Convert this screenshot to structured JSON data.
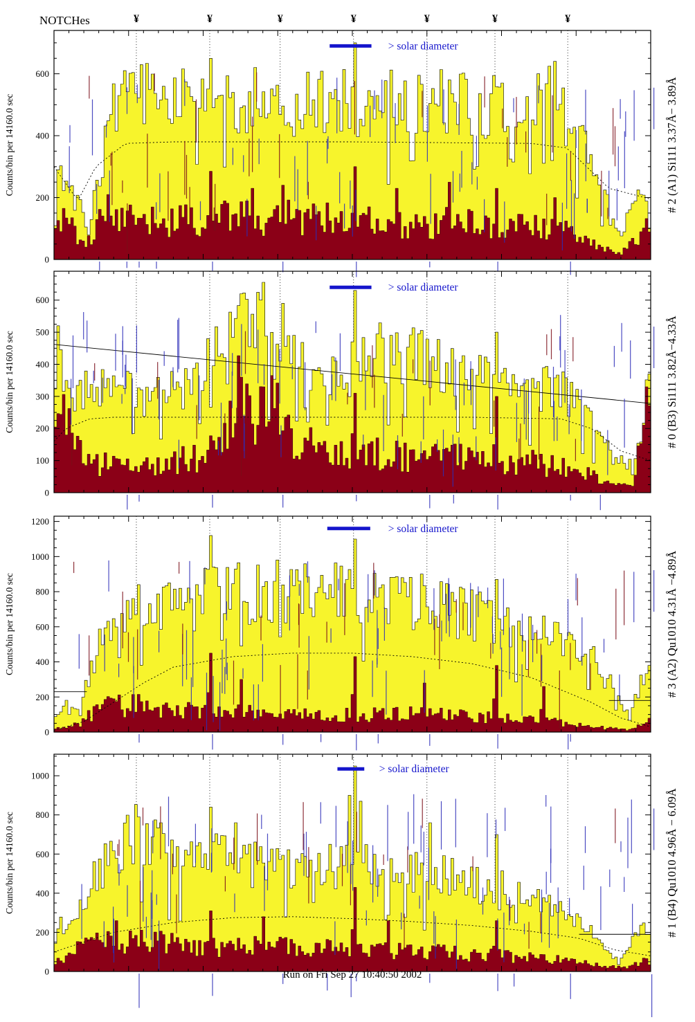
{
  "header": {
    "title": "NOTCHes",
    "notch_symbol": "¥"
  },
  "footer": {
    "text": "Run on Fri Sep 27 10:40:50 2002"
  },
  "annotations": {
    "solar_diameter_label": "> solar diameter"
  },
  "colors": {
    "yellow": "#f7f42c",
    "red": "#8b0017",
    "blue": "#1515cc",
    "annotation_blue": "#2d2db8",
    "annotation_red": "#7a0d18",
    "frame": "#000000",
    "notch_line": "#222222"
  },
  "notch_fractions": [
    0.138,
    0.261,
    0.379,
    0.502,
    0.625,
    0.739,
    0.861
  ],
  "chart_data": [
    {
      "type": "bar",
      "name": "# 2 (A1) Si111  3.37Å− 3.89Å",
      "ylabel": "Counts/bin per  14160.0 sec",
      "ylim": [
        0,
        740
      ],
      "yticks": [
        0,
        200,
        400,
        600
      ],
      "seed": 101,
      "series": [
        {
          "name": "accepted-counts-yellow",
          "envelope": {
            "x": [
              0,
              0.008,
              0.02,
              0.035,
              0.05,
              0.065,
              0.08,
              0.1,
              0.13,
              0.2,
              0.3,
              0.4,
              0.5,
              0.6,
              0.7,
              0.78,
              0.84,
              0.87,
              0.9,
              0.925,
              0.95,
              0.97,
              0.985,
              1
            ],
            "y": [
              60,
              300,
              260,
              320,
              120,
              160,
              300,
              480,
              520,
              500,
              510,
              495,
              505,
              495,
              500,
              490,
              520,
              430,
              300,
              230,
              60,
              180,
              185,
              190
            ]
          },
          "spikes": [
            [
              0.118,
              610
            ],
            [
              0.261,
              650
            ],
            [
              0.502,
              700
            ],
            [
              0.66,
              580
            ],
            [
              0.75,
              570
            ],
            [
              0.807,
              600
            ],
            [
              0.835,
              640
            ]
          ]
        },
        {
          "name": "rejected-counts-red",
          "envelope": {
            "x": [
              0,
              0.02,
              0.05,
              0.09,
              0.13,
              0.2,
              0.3,
              0.4,
              0.5,
              0.6,
              0.7,
              0.8,
              0.86,
              0.9,
              0.95,
              1
            ],
            "y": [
              90,
              140,
              50,
              150,
              130,
              120,
              135,
              140,
              120,
              115,
              120,
              110,
              90,
              50,
              15,
              120
            ]
          },
          "spikes": [
            [
              0.09,
              210
            ],
            [
              0.261,
              285
            ],
            [
              0.33,
              230
            ],
            [
              0.38,
              240
            ],
            [
              0.502,
              300
            ],
            [
              0.57,
              230
            ],
            [
              0.66,
              250
            ],
            [
              0.74,
              230
            ],
            [
              0.835,
              200
            ]
          ]
        },
        {
          "name": "smooth-background-dotted",
          "points": {
            "x": [
              0,
              0.04,
              0.07,
              0.12,
              0.2,
              0.5,
              0.8,
              0.86,
              0.93,
              1
            ],
            "y": [
              300,
              190,
              300,
              375,
              380,
              380,
              375,
              360,
              230,
              195
            ]
          }
        }
      ],
      "ref_lines": [],
      "solar_bar": {
        "x0": 0.462,
        "x1": 0.532,
        "y": 690,
        "label_x": 0.56
      }
    },
    {
      "type": "bar",
      "name": "# 0 (B3) Si111  3.82Å−4.33Å",
      "ylabel": "Counts/bin per  14160.0 sec",
      "ylim": [
        0,
        690
      ],
      "yticks": [
        0,
        100,
        200,
        300,
        400,
        500,
        600
      ],
      "seed": 202,
      "series": [
        {
          "name": "accepted-counts-yellow",
          "envelope": {
            "x": [
              0,
              0.006,
              0.02,
              0.04,
              0.07,
              0.1,
              0.15,
              0.2,
              0.24,
              0.27,
              0.29,
              0.31,
              0.33,
              0.35,
              0.37,
              0.4,
              0.43,
              0.47,
              0.5,
              0.54,
              0.58,
              0.62,
              0.66,
              0.7,
              0.75,
              0.8,
              0.85,
              0.88,
              0.91,
              0.94,
              0.97,
              0.99,
              1
            ],
            "y": [
              300,
              520,
              330,
              300,
              320,
              310,
              300,
              310,
              330,
              470,
              420,
              560,
              460,
              540,
              420,
              480,
              380,
              360,
              380,
              430,
              420,
              410,
              390,
              360,
              340,
              330,
              310,
              280,
              200,
              100,
              90,
              250,
              370
            ]
          },
          "spikes": [
            [
              0.005,
              520
            ],
            [
              0.258,
              480
            ],
            [
              0.31,
              620
            ],
            [
              0.345,
              600
            ],
            [
              0.38,
              590
            ],
            [
              0.502,
              630
            ],
            [
              0.74,
              500
            ],
            [
              0.997,
              370
            ]
          ]
        },
        {
          "name": "rejected-counts-red",
          "envelope": {
            "x": [
              0,
              0.01,
              0.03,
              0.06,
              0.1,
              0.15,
              0.2,
              0.25,
              0.28,
              0.31,
              0.34,
              0.37,
              0.4,
              0.45,
              0.5,
              0.55,
              0.6,
              0.65,
              0.7,
              0.75,
              0.8,
              0.85,
              0.9,
              0.94,
              0.97,
              0.99,
              1
            ],
            "y": [
              260,
              320,
              150,
              90,
              85,
              90,
              95,
              110,
              140,
              330,
              260,
              310,
              160,
              130,
              130,
              120,
              115,
              110,
              105,
              100,
              95,
              80,
              60,
              30,
              20,
              320,
              220
            ]
          },
          "spikes": [
            [
              0.31,
              360
            ],
            [
              0.35,
              330
            ],
            [
              0.502,
              310
            ],
            [
              0.74,
              300
            ],
            [
              0.99,
              330
            ]
          ]
        },
        {
          "name": "smooth-background-dotted",
          "points": {
            "x": [
              0,
              0.02,
              0.06,
              0.1,
              0.3,
              0.5,
              0.7,
              0.85,
              0.9,
              0.95,
              1
            ],
            "y": [
              160,
              200,
              230,
              235,
              235,
              235,
              235,
              230,
              200,
              130,
              100
            ]
          }
        }
      ],
      "ref_lines": [
        {
          "x0": 0,
          "y0": 462,
          "x1": 1,
          "y1": 278
        }
      ],
      "solar_bar": {
        "x0": 0.462,
        "x1": 0.532,
        "y": 640,
        "label_x": 0.56
      }
    },
    {
      "type": "bar",
      "name": "# 3 (A2) Qu1010  4.31Å −4.89Å",
      "ylabel": "Counts/bin per  14160.0 sec",
      "ylim": [
        0,
        1230
      ],
      "yticks": [
        0,
        200,
        400,
        600,
        800,
        1000,
        1200
      ],
      "seed": 303,
      "series": [
        {
          "name": "accepted-counts-yellow",
          "envelope": {
            "x": [
              0,
              0.02,
              0.035,
              0.05,
              0.07,
              0.09,
              0.11,
              0.14,
              0.18,
              0.22,
              0.26,
              0.3,
              0.35,
              0.4,
              0.45,
              0.5,
              0.55,
              0.6,
              0.65,
              0.7,
              0.75,
              0.8,
              0.84,
              0.88,
              0.91,
              0.94,
              0.965,
              0.985,
              1
            ],
            "y": [
              60,
              170,
              120,
              200,
              420,
              600,
              650,
              680,
              700,
              720,
              760,
              780,
              790,
              800,
              790,
              780,
              760,
              740,
              700,
              660,
              620,
              560,
              520,
              470,
              380,
              230,
              80,
              300,
              380
            ]
          },
          "spikes": [
            [
              0.19,
              850
            ],
            [
              0.235,
              840
            ],
            [
              0.26,
              1120
            ],
            [
              0.502,
              1100
            ],
            [
              0.58,
              880
            ],
            [
              0.74,
              870
            ]
          ]
        },
        {
          "name": "rejected-counts-red",
          "envelope": {
            "x": [
              0,
              0.04,
              0.07,
              0.1,
              0.14,
              0.2,
              0.3,
              0.4,
              0.5,
              0.6,
              0.7,
              0.8,
              0.87,
              0.92,
              0.96,
              1
            ],
            "y": [
              20,
              40,
              120,
              150,
              150,
              130,
              115,
              100,
              95,
              100,
              90,
              75,
              50,
              25,
              15,
              60
            ]
          },
          "spikes": [
            [
              0.26,
              450
            ],
            [
              0.31,
              300
            ],
            [
              0.502,
              430
            ],
            [
              0.62,
              280
            ],
            [
              0.74,
              380
            ],
            [
              0.82,
              260
            ]
          ]
        },
        {
          "name": "smooth-background-dotted",
          "points": {
            "x": [
              0,
              0.05,
              0.1,
              0.15,
              0.2,
              0.3,
              0.4,
              0.5,
              0.6,
              0.7,
              0.8,
              0.9,
              0.95,
              1
            ],
            "y": [
              10,
              60,
              170,
              280,
              370,
              430,
              450,
              450,
              430,
              390,
              310,
              170,
              80,
              30
            ]
          }
        }
      ],
      "ref_lines": [
        {
          "x0": 0,
          "y0": 230,
          "x1": 0.055,
          "y1": 230
        },
        {
          "x0": 0.93,
          "y0": 180,
          "x1": 1,
          "y1": 180
        }
      ],
      "solar_bar": {
        "x0": 0.458,
        "x1": 0.53,
        "y": 1160,
        "label_x": 0.56
      }
    },
    {
      "type": "bar",
      "name": "# 1 (B4) Qu1010 4.96Å − 6.09Å",
      "ylabel": "Counts/bin per  14160.0 sec",
      "ylim": [
        0,
        1110
      ],
      "yticks": [
        0,
        200,
        400,
        600,
        800,
        1000
      ],
      "seed": 404,
      "series": [
        {
          "name": "accepted-counts-yellow",
          "envelope": {
            "x": [
              0,
              0.008,
              0.02,
              0.04,
              0.06,
              0.08,
              0.1,
              0.12,
              0.14,
              0.17,
              0.2,
              0.24,
              0.28,
              0.32,
              0.36,
              0.4,
              0.45,
              0.5,
              0.55,
              0.6,
              0.65,
              0.7,
              0.75,
              0.8,
              0.84,
              0.87,
              0.9,
              0.925,
              0.95,
              0.975,
              1
            ],
            "y": [
              100,
              280,
              180,
              300,
              420,
              520,
              600,
              640,
              700,
              680,
              560,
              540,
              580,
              540,
              560,
              530,
              540,
              520,
              530,
              500,
              480,
              450,
              420,
              380,
              330,
              260,
              200,
              90,
              60,
              200,
              210
            ]
          },
          "spikes": [
            [
              0.14,
              790
            ],
            [
              0.175,
              760
            ],
            [
              0.26,
              840
            ],
            [
              0.3,
              760
            ],
            [
              0.495,
              900
            ],
            [
              0.503,
              1050
            ],
            [
              0.51,
              870
            ],
            [
              0.63,
              760
            ],
            [
              0.74,
              700
            ]
          ]
        },
        {
          "name": "rejected-counts-red",
          "envelope": {
            "x": [
              0,
              0.03,
              0.06,
              0.1,
              0.15,
              0.2,
              0.3,
              0.4,
              0.5,
              0.6,
              0.7,
              0.8,
              0.87,
              0.92,
              0.96,
              1
            ],
            "y": [
              50,
              100,
              140,
              160,
              150,
              140,
              130,
              120,
              115,
              100,
              90,
              70,
              50,
              30,
              20,
              60
            ]
          },
          "spikes": [
            [
              0.1,
              260
            ],
            [
              0.26,
              310
            ],
            [
              0.35,
              280
            ],
            [
              0.502,
              430
            ],
            [
              0.56,
              260
            ],
            [
              0.74,
              260
            ]
          ]
        },
        {
          "name": "smooth-background-dotted",
          "points": {
            "x": [
              0,
              0.05,
              0.1,
              0.2,
              0.3,
              0.4,
              0.5,
              0.6,
              0.7,
              0.8,
              0.88,
              0.94,
              1
            ],
            "y": [
              100,
              150,
              200,
              250,
              275,
              280,
              270,
              255,
              235,
              205,
              170,
              110,
              80
            ]
          }
        }
      ],
      "ref_lines": [
        {
          "x0": 0.88,
          "y0": 190,
          "x1": 1,
          "y1": 190
        }
      ],
      "solar_bar": {
        "x0": 0.475,
        "x1": 0.52,
        "y": 1035,
        "label_x": 0.545
      }
    }
  ]
}
